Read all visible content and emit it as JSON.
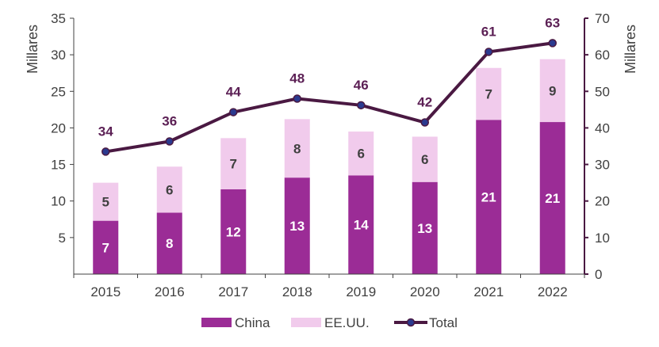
{
  "chart_data": {
    "type": "bar",
    "stacked": true,
    "categories": [
      "2015",
      "2016",
      "2017",
      "2018",
      "2019",
      "2020",
      "2021",
      "2022"
    ],
    "series": [
      {
        "name": "China",
        "values": [
          7,
          8,
          12,
          13,
          14,
          13,
          21,
          21
        ],
        "bar_heights": [
          7.3,
          8.4,
          11.6,
          13.2,
          13.5,
          12.6,
          21.1,
          20.8
        ],
        "color": "#9B2C96",
        "label_color": "#ffffff"
      },
      {
        "name": "EE.UU.",
        "values": [
          5,
          6,
          7,
          8,
          6,
          6,
          7,
          9
        ],
        "bar_heights": [
          5.2,
          6.3,
          7.0,
          8.0,
          6.0,
          6.2,
          7.1,
          8.6
        ],
        "color": "#F1CBEC",
        "label_color": "#404040"
      }
    ],
    "line": {
      "name": "Total",
      "axis": "right",
      "values": [
        34,
        36,
        44,
        48,
        46,
        42,
        61,
        63
      ],
      "plotted": [
        33.5,
        36.3,
        44.3,
        48.0,
        46.2,
        41.5,
        60.8,
        63.2
      ],
      "color": "#4A1942",
      "label_color": "#5B1F54"
    },
    "ylabel_left": "Millares",
    "ylabel_right": "Millares",
    "ylim_left": [
      0,
      35
    ],
    "yticks_left": [
      5,
      10,
      15,
      20,
      25,
      30,
      35
    ],
    "ylim_right": [
      0,
      70
    ],
    "yticks_right": [
      0,
      10,
      20,
      30,
      40,
      50,
      60,
      70
    ],
    "grid": false,
    "legend_position": "bottom",
    "legend": [
      "China",
      "EE.UU.",
      "Total"
    ]
  }
}
